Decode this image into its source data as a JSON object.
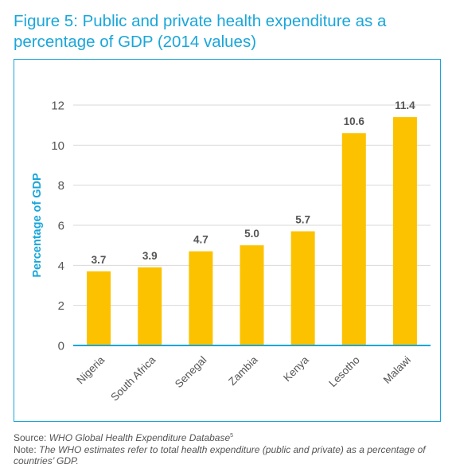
{
  "figure": {
    "title": "Figure 5: Public and private health expenditure as a percentage of GDP (2014 values)"
  },
  "chart_data": {
    "type": "bar",
    "categories": [
      "Nigeria",
      "South Africa",
      "Senegal",
      "Zambia",
      "Kenya",
      "Lesotho",
      "Malawi"
    ],
    "values": [
      3.7,
      3.9,
      4.7,
      5.0,
      5.7,
      10.6,
      11.4
    ],
    "data_labels": [
      "3.7",
      "3.9",
      "4.7",
      "5.0",
      "5.7",
      "10.6",
      "11.4"
    ],
    "title": "",
    "xlabel": "",
    "ylabel": "Percentage of GDP",
    "ylim": [
      0,
      12
    ],
    "yticks": [
      0,
      2,
      4,
      6,
      8,
      10,
      12
    ],
    "grid": true,
    "legend": "none",
    "bar_color": "#fcc200",
    "axis_color": "#1aa6da",
    "grid_color": "#d9d9d9"
  },
  "notes": {
    "source_prefix": "Source: ",
    "source_text": "WHO Global Health Expenditure Database",
    "source_ref": "5",
    "note_prefix": "Note: ",
    "note_text": "The WHO estimates refer to total health expenditure (public and private) as a percentage of countries’ GDP."
  }
}
